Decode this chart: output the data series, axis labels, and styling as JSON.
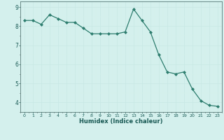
{
  "x": [
    0,
    1,
    2,
    3,
    4,
    5,
    6,
    7,
    8,
    9,
    10,
    11,
    12,
    13,
    14,
    15,
    16,
    17,
    18,
    19,
    20,
    21,
    22,
    23
  ],
  "y": [
    8.3,
    8.3,
    8.1,
    8.6,
    8.4,
    8.2,
    8.2,
    7.9,
    7.6,
    7.6,
    7.6,
    7.6,
    7.7,
    8.9,
    8.3,
    7.7,
    6.5,
    5.6,
    5.5,
    5.6,
    4.7,
    4.1,
    3.85,
    3.8
  ],
  "xlabel": "Humidex (Indice chaleur)",
  "ylim": [
    3.5,
    9.3
  ],
  "xlim": [
    -0.5,
    23.5
  ],
  "yticks": [
    4,
    5,
    6,
    7,
    8,
    9
  ],
  "xticks": [
    0,
    1,
    2,
    3,
    4,
    5,
    6,
    7,
    8,
    9,
    10,
    11,
    12,
    13,
    14,
    15,
    16,
    17,
    18,
    19,
    20,
    21,
    22,
    23
  ],
  "line_color": "#2d7d6e",
  "marker_color": "#2d7d6e",
  "bg_color": "#d4f0ed",
  "grid_color_major": "#c8e8e4",
  "grid_color_minor": "#d8f0ec",
  "axis_color": "#5a7a78",
  "label_color": "#1a5a55",
  "tick_label_color": "#1a5a55",
  "xlabel_fontsize": 6.0,
  "xlabel_fontweight": "bold"
}
